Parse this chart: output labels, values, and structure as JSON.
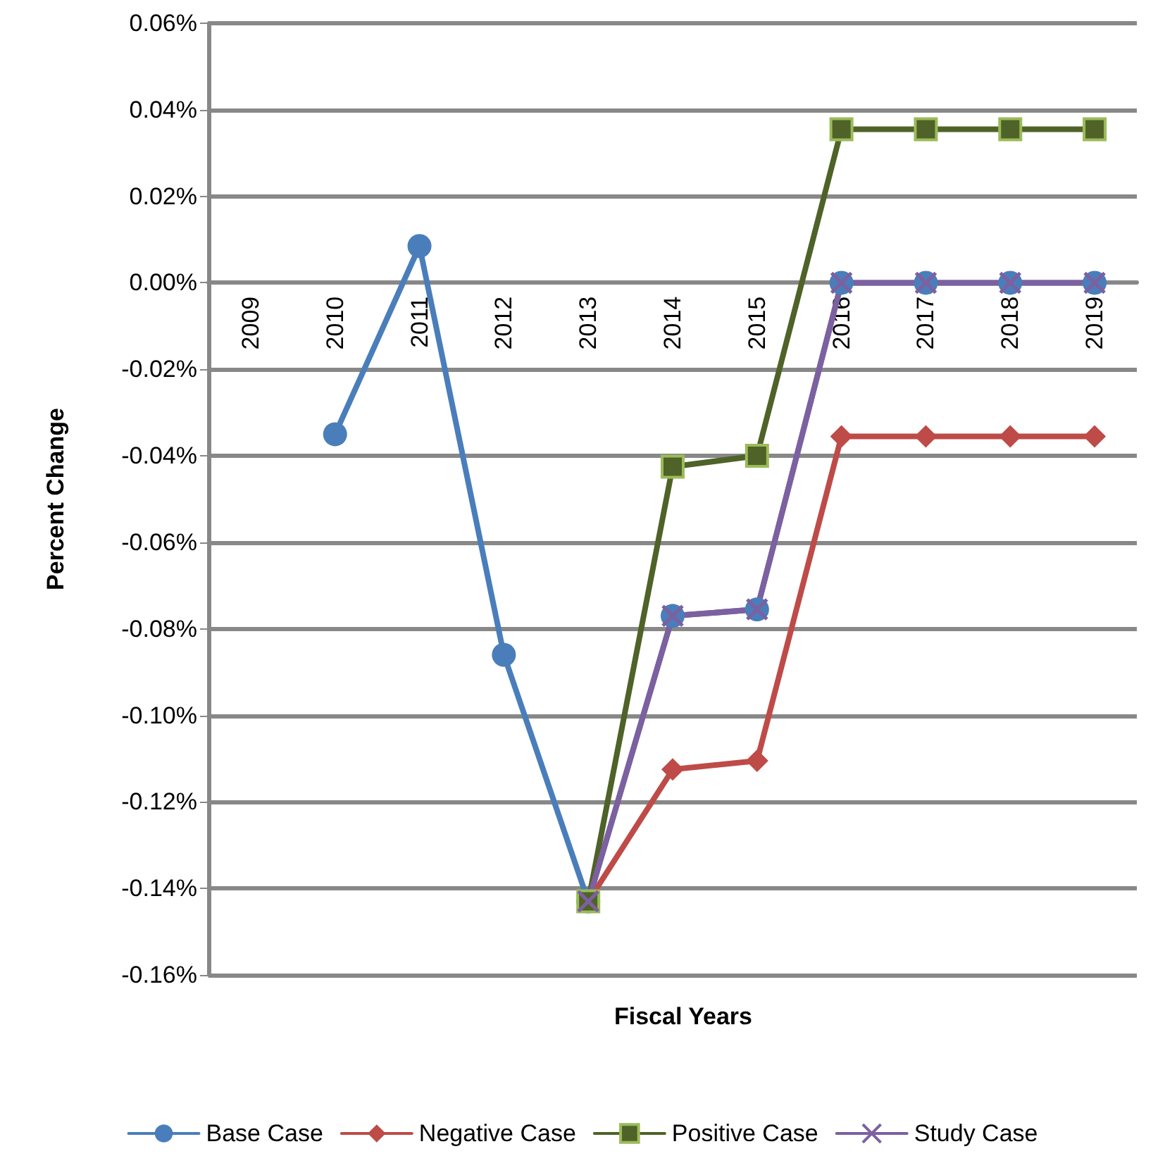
{
  "chart_data": {
    "type": "line",
    "xlabel": "Fiscal Years",
    "ylabel": "Percent Change",
    "categories": [
      "2009",
      "2010",
      "2011",
      "2012",
      "2013",
      "2014",
      "2015",
      "2016",
      "2017",
      "2018",
      "2019"
    ],
    "series": [
      {
        "name": "Base Case",
        "color": "#4a7ebb",
        "marker": "circle",
        "values": [
          null,
          -0.035,
          0.0085,
          -0.086,
          -0.143,
          -0.077,
          -0.0755,
          0,
          0,
          0,
          0
        ]
      },
      {
        "name": "Negative Case",
        "color": "#be4b48",
        "marker": "diamond",
        "values": [
          null,
          null,
          null,
          null,
          -0.143,
          -0.1125,
          -0.1105,
          -0.0355,
          -0.0355,
          -0.0355,
          -0.0355
        ]
      },
      {
        "name": "Positive Case",
        "color": "#4f6228",
        "marker": "square",
        "values": [
          null,
          null,
          null,
          null,
          -0.143,
          -0.0425,
          -0.04,
          0.0355,
          0.0355,
          0.0355,
          0.0355
        ]
      },
      {
        "name": "Study Case",
        "color": "#7d60a0",
        "marker": "cross",
        "values": [
          null,
          null,
          null,
          null,
          -0.143,
          -0.077,
          -0.0755,
          0,
          0,
          0,
          0
        ]
      }
    ],
    "ylim": [
      -0.16,
      0.06
    ],
    "yticks": [
      {
        "value": -0.16,
        "label": "-0.16%"
      },
      {
        "value": -0.14,
        "label": "-0.14%"
      },
      {
        "value": -0.12,
        "label": "-0.12%"
      },
      {
        "value": -0.1,
        "label": "-0.10%"
      },
      {
        "value": -0.08,
        "label": "-0.08%"
      },
      {
        "value": -0.06,
        "label": "-0.06%"
      },
      {
        "value": -0.04,
        "label": "-0.04%"
      },
      {
        "value": -0.02,
        "label": "-0.02%"
      },
      {
        "value": 0,
        "label": "0.00%"
      },
      {
        "value": 0.02,
        "label": "0.02%"
      },
      {
        "value": 0.04,
        "label": "0.04%"
      },
      {
        "value": 0.06,
        "label": "0.06%"
      }
    ],
    "grid": "y",
    "legend": "bottom"
  }
}
